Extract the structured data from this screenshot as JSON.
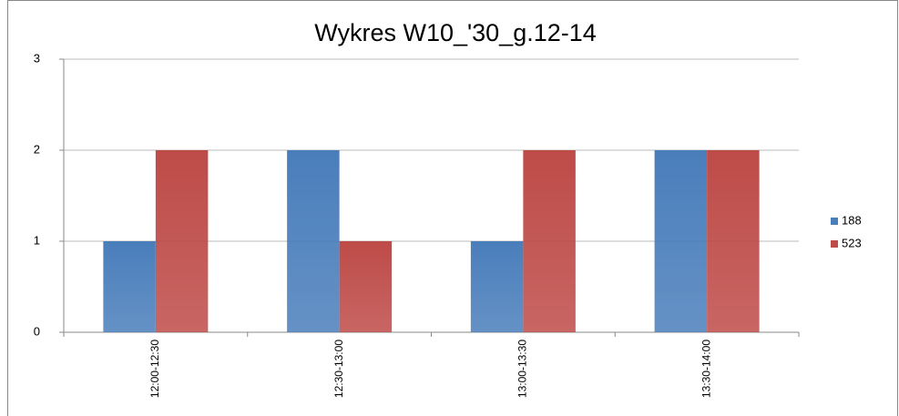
{
  "chart_data": {
    "type": "bar",
    "title": "Wykres W10_'30_g.12-14",
    "categories": [
      "12:00-12:30",
      "12:30-13:00",
      "13:00-13:30",
      "13:30-14:00"
    ],
    "series": [
      {
        "name": "188",
        "color": "#4a7ebb",
        "values": [
          1,
          2,
          1,
          2
        ]
      },
      {
        "name": "523",
        "color": "#be4b48",
        "values": [
          2,
          1,
          2,
          2
        ]
      }
    ],
    "ylim": [
      0,
      3
    ],
    "yticks": [
      0,
      1,
      2,
      3
    ],
    "grid": true,
    "legend": "right"
  }
}
